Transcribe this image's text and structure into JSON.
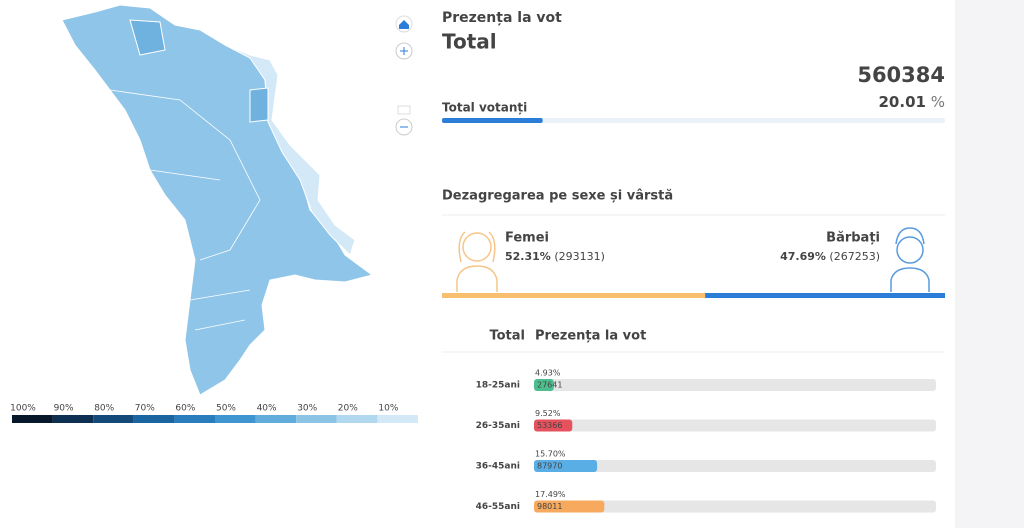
{
  "map": {
    "legend": [
      "100%",
      "90%",
      "80%",
      "70%",
      "60%",
      "50%",
      "40%",
      "30%",
      "20%",
      "10%"
    ]
  },
  "header": {
    "title": "Prezența la vot",
    "subtitle": "Total",
    "total": 560384,
    "percent": 20.01,
    "percent_unit": "%",
    "label": "Total votanți"
  },
  "gender": {
    "title": "Dezagregarea pe sexe și vârstă",
    "women": {
      "name": "Femei",
      "percent": {
        "value": 52.31,
        "label": "52.31%"
      },
      "count": {
        "value": 293131,
        "label": "(293131)"
      }
    },
    "men": {
      "name": "Bărbați",
      "percent": {
        "value": 47.69,
        "label": "47.69%"
      },
      "count": {
        "value": 267253,
        "label": "(267253)"
      }
    }
  },
  "age": {
    "header": [
      "Total",
      "Prezența la vot"
    ],
    "rows": [
      {
        "label": "18-25ani",
        "percent": {
          "value": 4.93,
          "label": "4.93%"
        },
        "count": 27641,
        "color": "#4dbf8f"
      },
      {
        "label": "26-35ani",
        "percent": {
          "value": 9.52,
          "label": "9.52%"
        },
        "count": 53366,
        "color": "#e5525e"
      },
      {
        "label": "36-45ani",
        "percent": {
          "value": 15.7,
          "label": "15.70%"
        },
        "count": 87970,
        "color": "#5aaee6"
      },
      {
        "label": "46-55ani",
        "percent": {
          "value": 17.49,
          "label": "17.49%"
        },
        "count": 98011,
        "color": "#f7a95e"
      }
    ]
  }
}
